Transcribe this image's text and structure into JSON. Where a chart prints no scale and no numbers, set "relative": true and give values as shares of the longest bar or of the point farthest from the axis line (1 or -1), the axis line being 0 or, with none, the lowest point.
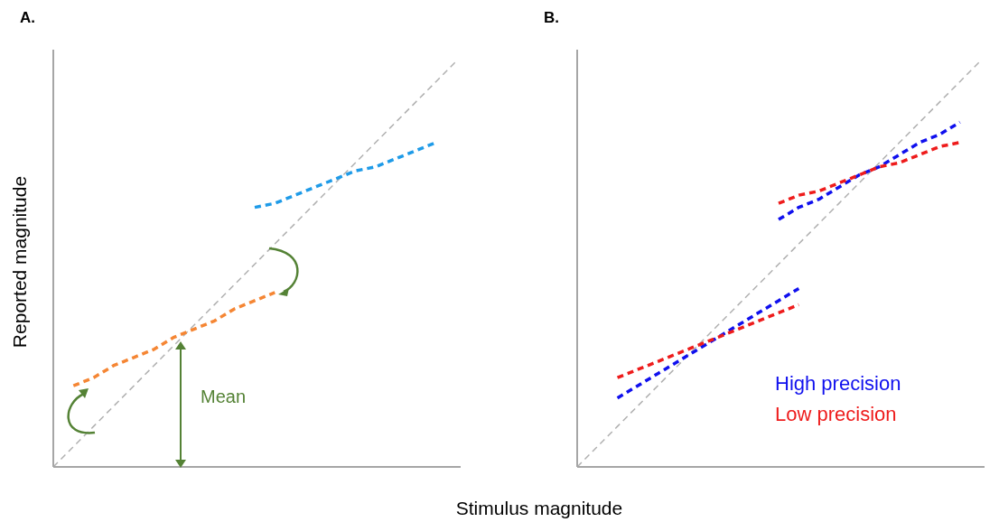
{
  "chart_data": [
    {
      "type": "line",
      "title": "A.",
      "ylabel": "Reported magnitude",
      "relative": true,
      "line_style": "dashed",
      "marker": "none",
      "grid": false,
      "categories": [
        null,
        null,
        null,
        null,
        null,
        null,
        null,
        null,
        null,
        null,
        null,
        null,
        null,
        null,
        null,
        null,
        null,
        null,
        null,
        null,
        null
      ],
      "series": [
        {
          "color": "#b0b0b0",
          "values": [
            0,
            0.05,
            0.1,
            0.15,
            0.2,
            0.25,
            0.3,
            0.35,
            0.4,
            0.45,
            0.5,
            0.55,
            0.6,
            0.65,
            0.7,
            0.75,
            0.8,
            0.85,
            0.9,
            0.95,
            1
          ]
        },
        {
          "color": "#1f9be8",
          "values": [
            null,
            null,
            null,
            null,
            null,
            null,
            null,
            null,
            null,
            null,
            0.64,
            0.65,
            0.67,
            0.69,
            0.71,
            0.73,
            0.74,
            0.76,
            0.78,
            0.8,
            null
          ]
        },
        {
          "color": "#f58634",
          "values": [
            null,
            0.2,
            0.22,
            0.25,
            0.27,
            0.29,
            0.32,
            0.34,
            0.36,
            0.39,
            0.41,
            0.43,
            null,
            null,
            null,
            null,
            null,
            null,
            null,
            null,
            null
          ]
        }
      ],
      "annotations": [
        "Mean"
      ]
    },
    {
      "type": "line",
      "title": "B.",
      "xlabel": "Stimulus magnitude",
      "relative": true,
      "line_style": "dashed",
      "marker": "none",
      "grid": false,
      "categories": [
        null,
        null,
        null,
        null,
        null,
        null,
        null,
        null,
        null,
        null,
        null,
        null,
        null,
        null,
        null,
        null,
        null,
        null,
        null,
        null,
        null
      ],
      "series": [
        {
          "color": "#b0b0b0",
          "values": [
            0,
            0.05,
            0.1,
            0.15,
            0.2,
            0.25,
            0.3,
            0.35,
            0.4,
            0.45,
            0.5,
            0.55,
            0.6,
            0.65,
            0.7,
            0.75,
            0.8,
            0.85,
            0.9,
            0.95,
            1
          ]
        },
        {
          "name": "High precision",
          "color": "#1010ee",
          "values": [
            null,
            null,
            0.17,
            0.2,
            0.23,
            0.26,
            0.29,
            0.32,
            0.35,
            0.38,
            0.41,
            0.44,
            null,
            null,
            null,
            null,
            null,
            null,
            null,
            null,
            null
          ]
        },
        {
          "name": "Low precision",
          "color": "#ee1c1c",
          "values": [
            null,
            null,
            0.22,
            0.24,
            0.26,
            0.28,
            0.3,
            0.32,
            0.34,
            0.36,
            0.38,
            0.4,
            null,
            null,
            null,
            null,
            null,
            null,
            null,
            null,
            null
          ]
        },
        {
          "color": "#1010ee",
          "values": [
            null,
            null,
            null,
            null,
            null,
            null,
            null,
            null,
            null,
            null,
            0.61,
            0.64,
            0.66,
            0.69,
            0.72,
            0.74,
            0.77,
            0.8,
            0.82,
            0.85,
            null
          ]
        },
        {
          "color": "#ee1c1c",
          "values": [
            null,
            null,
            null,
            null,
            null,
            null,
            null,
            null,
            null,
            null,
            0.65,
            0.67,
            0.68,
            0.7,
            0.72,
            0.74,
            0.75,
            0.77,
            0.79,
            0.8,
            null
          ]
        }
      ]
    }
  ]
}
